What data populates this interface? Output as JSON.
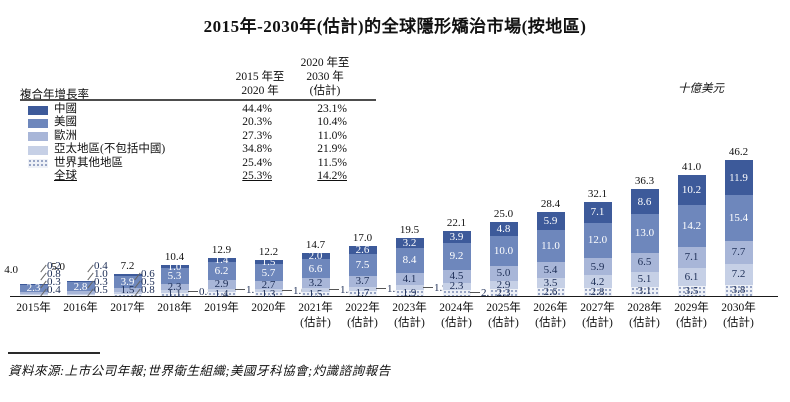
{
  "title": "2015年-2030年(估計)的全球隱形矯治市場(按地區)",
  "unit_label": "十億美元",
  "source_note": "資料來源:上市公司年報;世界衛生組織;美國牙科協會;灼識諮詢報告",
  "cagr_table": {
    "row_header": "複合年增長率",
    "col1_header_lines": [
      "2015 年至",
      "2020 年"
    ],
    "col2_header_lines": [
      "2020 年至",
      "2030 年",
      "(估計)"
    ],
    "rows": [
      {
        "label": "中國",
        "swatch": "china",
        "cagr_2015_2020": "44.4%",
        "cagr_2020_2030": "23.1%",
        "underline": false
      },
      {
        "label": "美國",
        "swatch": "usa",
        "cagr_2015_2020": "20.3%",
        "cagr_2020_2030": "10.4%",
        "underline": false
      },
      {
        "label": "歐洲",
        "swatch": "europe",
        "cagr_2015_2020": "27.3%",
        "cagr_2020_2030": "11.0%",
        "underline": false
      },
      {
        "label": "亞太地區(不包括中國)",
        "swatch": "apac",
        "cagr_2015_2020": "34.8%",
        "cagr_2020_2030": "21.9%",
        "underline": false
      },
      {
        "label": "世界其他地區",
        "swatch": "row",
        "cagr_2015_2020": "25.4%",
        "cagr_2020_2030": "11.5%",
        "underline": false
      },
      {
        "label": "全球",
        "swatch": null,
        "cagr_2015_2020": "25.3%",
        "cagr_2020_2030": "14.2%",
        "underline": true
      }
    ]
  },
  "chart_data": {
    "type": "bar",
    "stacked": true,
    "title": "2015年-2030年(估計)的全球隱形矯治市場(按地區)",
    "ylabel": "十億美元",
    "ylim": [
      0,
      50
    ],
    "grid": false,
    "series_order_top_to_bottom": [
      "中國",
      "美國",
      "歐洲",
      "亞太地區(不包括中國)",
      "世界其他地區"
    ],
    "colors": {
      "china": "#3d5a9a",
      "usa": "#6e87bc",
      "europe": "#a8b6d8",
      "apac": "#c6d0e6",
      "row_bg": "#eef1f7"
    },
    "bars": [
      {
        "year": "2015年",
        "sub": "",
        "total": 4.0,
        "values": [
          0.2,
          2.3,
          0.8,
          0.3,
          0.4
        ],
        "outside": [
          0,
          2,
          3,
          4
        ],
        "total_pos": "left"
      },
      {
        "year": "2016年",
        "sub": "",
        "total": 5.0,
        "values": [
          0.4,
          2.8,
          1.0,
          0.3,
          0.5
        ],
        "outside": [
          0,
          2,
          3,
          4
        ],
        "total_pos": "left"
      },
      {
        "year": "2017年",
        "sub": "",
        "total": 7.2,
        "values": [
          0.6,
          3.9,
          1.5,
          0.5,
          0.8
        ],
        "outside": [
          0,
          3,
          4
        ],
        "total_pos": "top"
      },
      {
        "year": "2018年",
        "sub": "",
        "total": 10.4,
        "values": [
          1.0,
          5.3,
          2.3,
          0.8,
          1.1
        ],
        "outside": [
          3
        ],
        "total_pos": "top"
      },
      {
        "year": "2019年",
        "sub": "",
        "total": 12.9,
        "values": [
          1.4,
          6.2,
          2.9,
          1.1,
          1.4
        ],
        "outside": [
          3
        ],
        "total_pos": "top"
      },
      {
        "year": "2020年",
        "sub": "",
        "total": 12.2,
        "values": [
          1.5,
          5.7,
          2.7,
          1.0,
          1.3
        ],
        "outside": [
          3
        ],
        "total_pos": "top"
      },
      {
        "year": "2021年",
        "sub": "(估計)",
        "total": 14.7,
        "values": [
          2.0,
          6.6,
          3.2,
          1.3,
          1.5
        ],
        "outside": [
          3
        ],
        "total_pos": "top"
      },
      {
        "year": "2022年",
        "sub": "(估計)",
        "total": 17.0,
        "values": [
          2.6,
          7.5,
          3.7,
          1.5,
          1.7
        ],
        "outside": [
          3
        ],
        "total_pos": "top"
      },
      {
        "year": "2023年",
        "sub": "(估計)",
        "total": 19.5,
        "values": [
          3.2,
          8.4,
          4.1,
          1.9,
          1.9
        ],
        "outside": [
          3
        ],
        "total_pos": "top"
      },
      {
        "year": "2024年",
        "sub": "(估計)",
        "total": 22.1,
        "values": [
          3.9,
          9.2,
          4.5,
          2.3,
          2.1
        ],
        "outside": [
          4
        ],
        "total_pos": "top"
      },
      {
        "year": "2025年",
        "sub": "(估計)",
        "total": 25.0,
        "values": [
          4.8,
          10.0,
          5.0,
          2.9,
          2.3
        ],
        "outside": [],
        "total_pos": "top"
      },
      {
        "year": "2026年",
        "sub": "(估計)",
        "total": 28.4,
        "values": [
          5.9,
          11.0,
          5.4,
          3.5,
          2.6
        ],
        "outside": [],
        "total_pos": "top"
      },
      {
        "year": "2027年",
        "sub": "(估計)",
        "total": 32.1,
        "values": [
          7.1,
          12.0,
          5.9,
          4.2,
          2.8
        ],
        "outside": [],
        "total_pos": "top"
      },
      {
        "year": "2028年",
        "sub": "(估計)",
        "total": 36.3,
        "values": [
          8.6,
          13.0,
          6.5,
          5.1,
          3.1
        ],
        "outside": [],
        "total_pos": "top"
      },
      {
        "year": "2029年",
        "sub": "(估計)",
        "total": 41.0,
        "values": [
          10.2,
          14.2,
          7.1,
          6.1,
          3.5
        ],
        "outside": [],
        "total_pos": "top"
      },
      {
        "year": "2030年",
        "sub": "(估計)",
        "total": 46.2,
        "values": [
          11.9,
          15.4,
          7.7,
          7.2,
          3.8
        ],
        "outside": [],
        "total_pos": "top"
      }
    ]
  }
}
